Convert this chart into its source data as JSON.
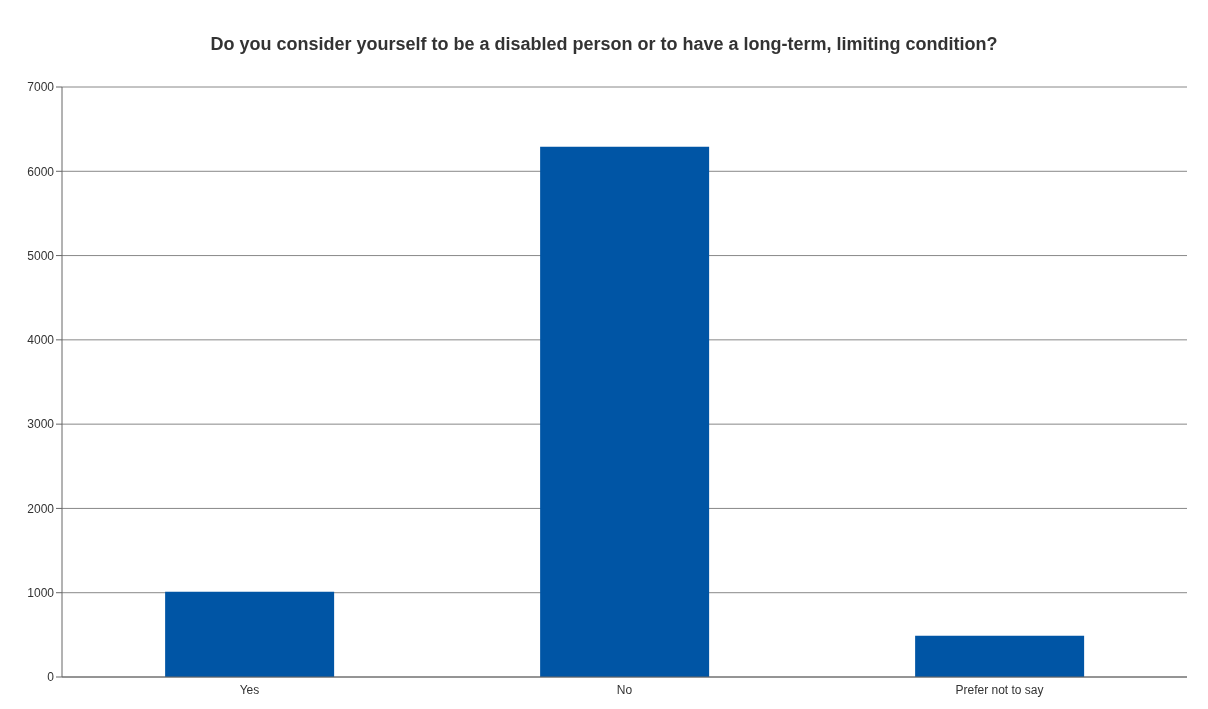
{
  "chart_data": {
    "type": "bar",
    "title": "Do you consider yourself to be a disabled person or to have a long-term, limiting condition?",
    "categories": [
      "Yes",
      "No",
      "Prefer not to say"
    ],
    "values": [
      1010,
      6290,
      490
    ],
    "color": "#0055a5",
    "ylim": [
      0,
      7000
    ],
    "yticks": [
      0,
      1000,
      2000,
      3000,
      4000,
      5000,
      6000,
      7000
    ],
    "grid": "y"
  }
}
